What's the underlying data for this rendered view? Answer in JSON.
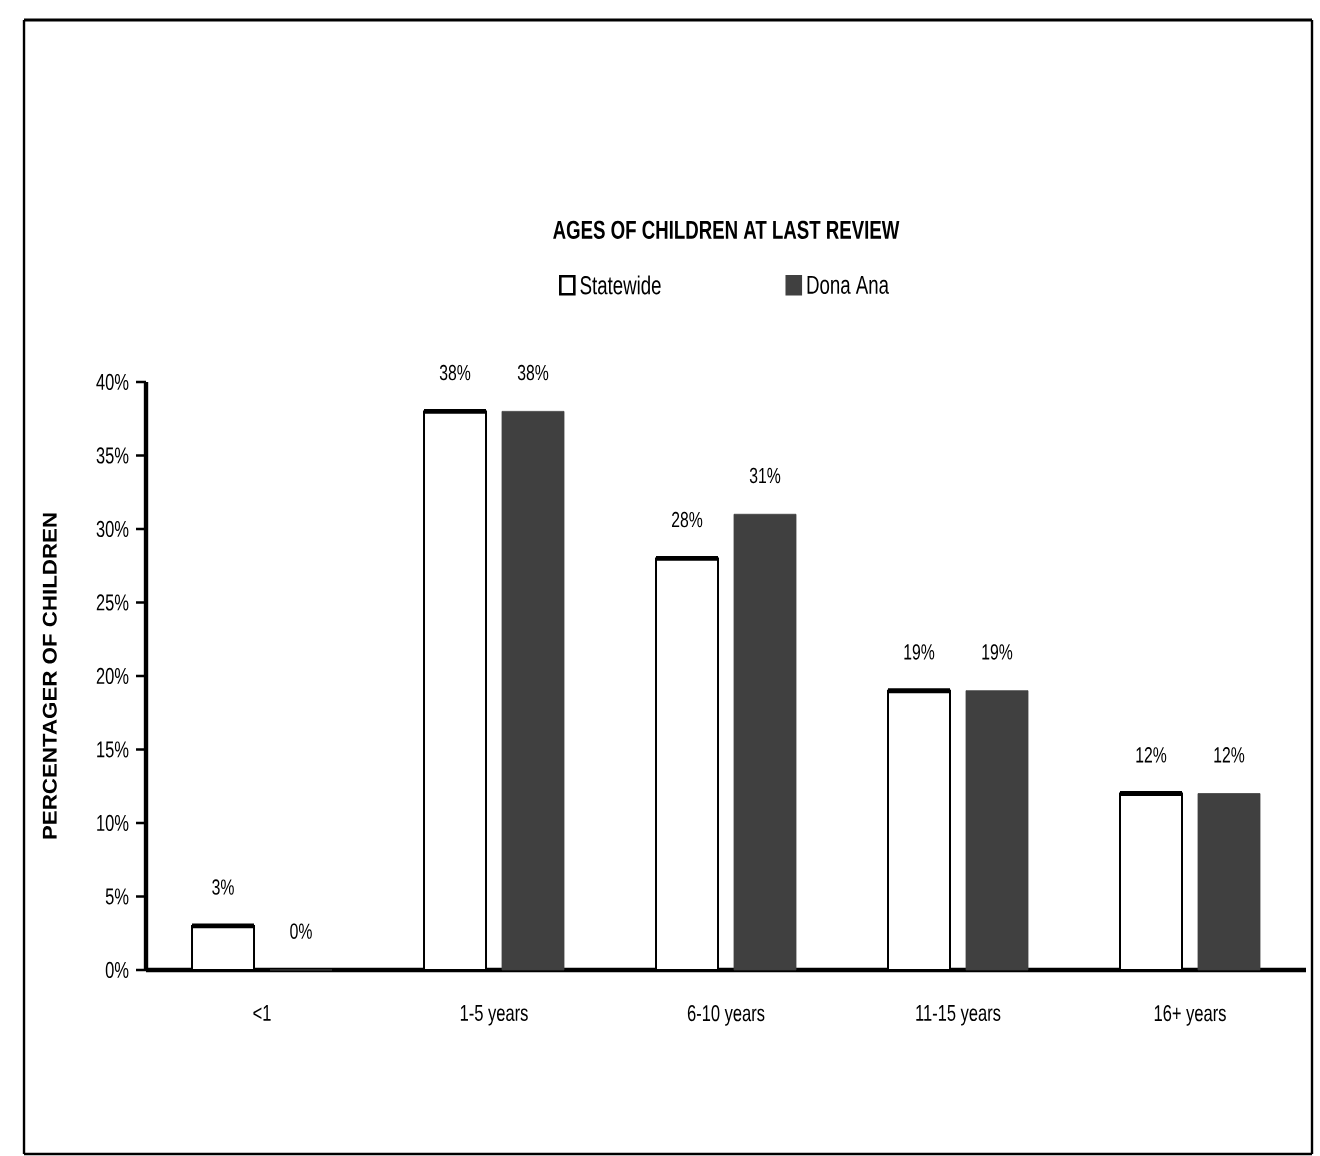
{
  "chart_data": {
    "type": "bar",
    "title": "AGES OF CHILDREN AT LAST REVIEW",
    "ylabel": "PERCENTAGER OF CHILDREN",
    "categories": [
      "<1",
      "1-5 years",
      "6-10 years",
      "11-15 years",
      "16+ years"
    ],
    "series": [
      {
        "name": "Statewide",
        "color": "#ffffff",
        "values": [
          3,
          38,
          28,
          19,
          12
        ],
        "value_labels": [
          "3%",
          "38%",
          "28%",
          "19%",
          "12%"
        ]
      },
      {
        "name": "Dona Ana",
        "color": "#404040",
        "values": [
          0,
          38,
          31,
          19,
          12
        ],
        "value_labels": [
          "0%",
          "38%",
          "31%",
          "19%",
          "12%"
        ]
      }
    ],
    "ylim": [
      0,
      40
    ],
    "yticks": [
      {
        "value": 0,
        "label": "0%"
      },
      {
        "value": 5,
        "label": "5%"
      },
      {
        "value": 10,
        "label": "10%"
      },
      {
        "value": 15,
        "label": "15%"
      },
      {
        "value": 20,
        "label": "20%"
      },
      {
        "value": 25,
        "label": "25%"
      },
      {
        "value": 30,
        "label": "30%"
      },
      {
        "value": 35,
        "label": "35%"
      },
      {
        "value": 40,
        "label": "40%"
      }
    ],
    "legend": "top"
  }
}
